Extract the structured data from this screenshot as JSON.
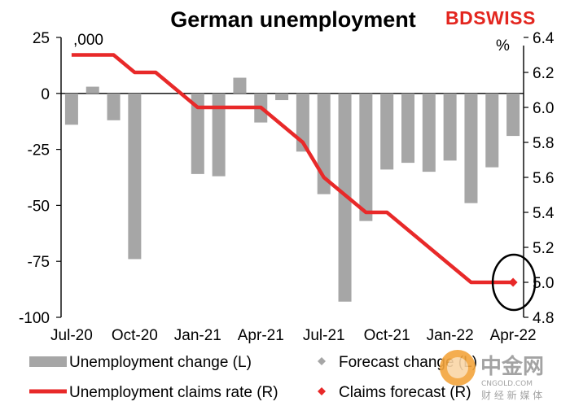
{
  "chart_data": {
    "type": "bar",
    "title": "German unemployment",
    "left_unit": ",000",
    "right_unit": "%",
    "categories": [
      "Jul-20",
      "Aug-20",
      "Sep-20",
      "Oct-20",
      "Nov-20",
      "Dec-20",
      "Jan-21",
      "Feb-21",
      "Mar-21",
      "Apr-21",
      "May-21",
      "Jun-21",
      "Jul-21",
      "Aug-21",
      "Sep-21",
      "Oct-21",
      "Nov-21",
      "Dec-21",
      "Jan-22",
      "Feb-22",
      "Mar-22",
      "Apr-22"
    ],
    "x_tick_labels": [
      "Jul-20",
      "Oct-20",
      "Jan-21",
      "Apr-21",
      "Jul-21",
      "Oct-21",
      "Jan-22",
      "Apr-22"
    ],
    "y_left": {
      "min": -100,
      "max": 25,
      "ticks": [
        "25",
        "0",
        "-25",
        "-50",
        "-75",
        "-100"
      ]
    },
    "y_right": {
      "min": 4.8,
      "max": 6.4,
      "ticks": [
        "6.4",
        "6.2",
        "6.0",
        "5.8",
        "5.6",
        "5.4",
        "5.2",
        "5.0",
        "4.8"
      ]
    },
    "series": [
      {
        "name": "Unemployment change (L)",
        "type": "bar",
        "axis": "left",
        "color": "#a6a6a6",
        "values": [
          -14,
          3,
          -12,
          -74,
          null,
          null,
          -36,
          -37,
          7,
          -13,
          -3,
          -26,
          -45,
          -93,
          -57,
          -34,
          -31,
          -35,
          -30,
          -49,
          -33,
          -19
        ]
      },
      {
        "name": "Forecast change (L)",
        "type": "marker",
        "axis": "left",
        "color": "#a6a6a6",
        "values": [
          null,
          null,
          null,
          null,
          null,
          null,
          null,
          null,
          null,
          null,
          null,
          null,
          null,
          null,
          null,
          null,
          null,
          null,
          null,
          null,
          null,
          -15
        ]
      },
      {
        "name": "Unemployment claims rate (R)",
        "type": "line",
        "axis": "right",
        "color": "#e82929",
        "values": [
          6.3,
          6.3,
          6.3,
          6.2,
          6.2,
          6.1,
          6.0,
          6.0,
          6.0,
          6.0,
          5.9,
          5.8,
          5.6,
          5.5,
          5.4,
          5.4,
          5.3,
          5.2,
          5.1,
          5.0,
          5.0,
          5.0
        ]
      },
      {
        "name": "Claims forecast (R)",
        "type": "marker",
        "axis": "right",
        "color": "#e82929",
        "values": [
          null,
          null,
          null,
          null,
          null,
          null,
          null,
          null,
          null,
          null,
          null,
          null,
          null,
          null,
          null,
          null,
          null,
          null,
          null,
          null,
          null,
          5.0
        ]
      }
    ],
    "legend": [
      {
        "label": "Unemployment change (L)",
        "symbol": "bar"
      },
      {
        "label": "Forecast change (L)",
        "symbol": "grey-diamond"
      },
      {
        "label": "Unemployment claims rate (R)",
        "symbol": "red-line"
      },
      {
        "label": "Claims forecast (R)",
        "symbol": "red-diamond"
      }
    ],
    "legend_placement": "bottom",
    "grid": false,
    "annotation": "black circle around Apr-22 claims forecast"
  },
  "brand": {
    "logo": "BDSWISS",
    "logo_color": "#e3261f"
  },
  "watermark": {
    "title": "中金网",
    "subtitle": "CNGOLD.COM",
    "tagline": "财 经 新 媒 体"
  }
}
